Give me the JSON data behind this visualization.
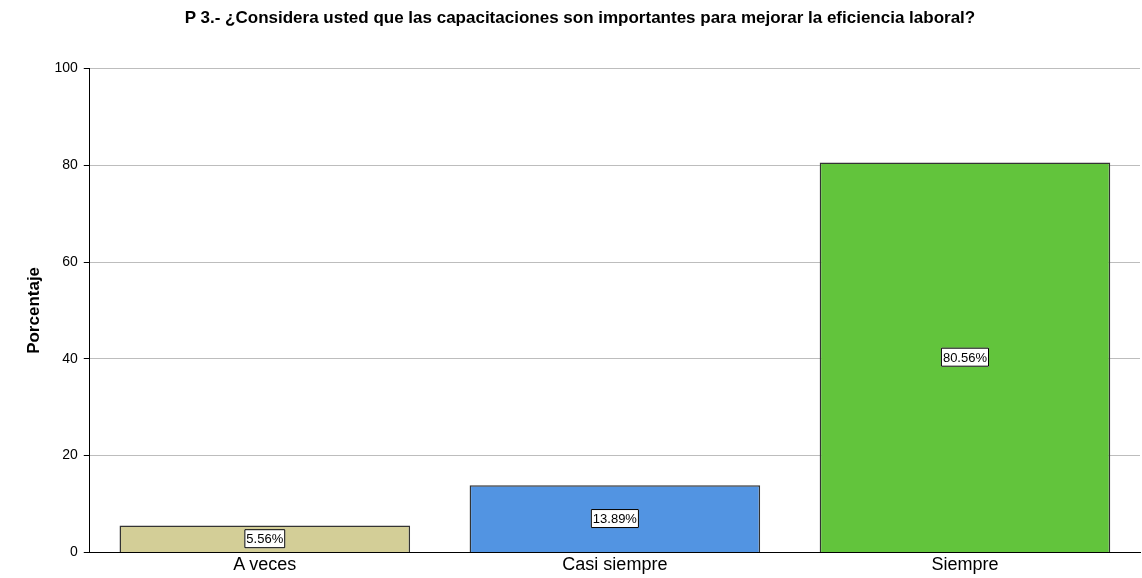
{
  "chart_data": {
    "type": "bar",
    "title": "P 3.- ¿Considera usted que las capacitaciones son importantes para mejorar la eficiencia laboral?",
    "ylabel": "Porcentaje",
    "categories": [
      "A veces",
      "Casi siempre",
      "Siempre"
    ],
    "values": [
      5.56,
      13.89,
      80.56
    ],
    "colors": [
      "#d3ce97",
      "#5294e2",
      "#62c43c"
    ],
    "value_labels": [
      "5.56%",
      "13.89%",
      "80.56%"
    ],
    "ylim": [
      0,
      100
    ],
    "yticks": [
      0,
      20,
      40,
      60,
      80,
      100
    ],
    "grid": "y",
    "legend": false
  }
}
